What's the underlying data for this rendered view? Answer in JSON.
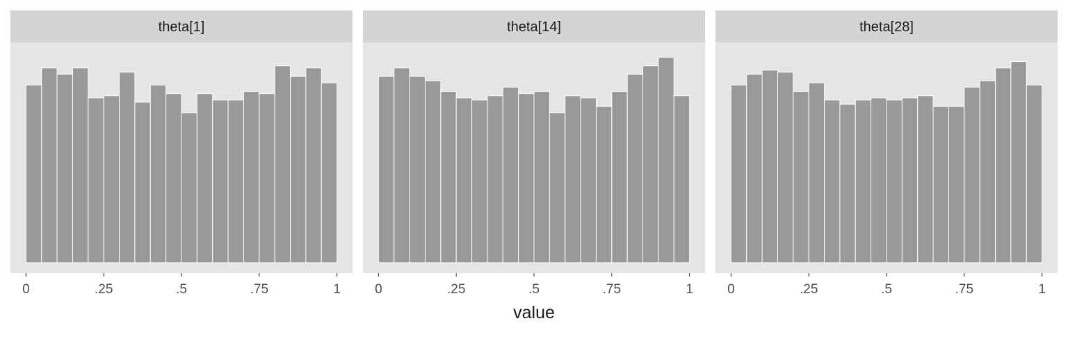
{
  "chart_data": [
    {
      "type": "bar",
      "title": "theta[1]",
      "xlabel": "value",
      "xlim": [
        0,
        1
      ],
      "ylim": [
        0,
        1.0
      ],
      "bins": 20,
      "bin_range": [
        0,
        1
      ],
      "values": [
        0.83,
        0.91,
        0.88,
        0.91,
        0.77,
        0.78,
        0.89,
        0.75,
        0.83,
        0.79,
        0.7,
        0.79,
        0.76,
        0.76,
        0.8,
        0.79,
        0.92,
        0.87,
        0.91,
        0.84
      ],
      "tick_labels": [
        "0",
        ".25",
        ".5",
        ".75",
        "1"
      ]
    },
    {
      "type": "bar",
      "title": "theta[14]",
      "xlabel": "value",
      "xlim": [
        0,
        1
      ],
      "ylim": [
        0,
        1.0
      ],
      "bins": 20,
      "bin_range": [
        0,
        1
      ],
      "values": [
        0.87,
        0.91,
        0.87,
        0.85,
        0.8,
        0.77,
        0.76,
        0.78,
        0.82,
        0.79,
        0.8,
        0.7,
        0.78,
        0.77,
        0.73,
        0.8,
        0.88,
        0.92,
        0.96,
        0.78
      ],
      "tick_labels": [
        "0",
        ".25",
        ".5",
        ".75",
        "1"
      ]
    },
    {
      "type": "bar",
      "title": "theta[28]",
      "xlabel": "value",
      "xlim": [
        0,
        1
      ],
      "ylim": [
        0,
        1.0
      ],
      "bins": 20,
      "bin_range": [
        0,
        1
      ],
      "values": [
        0.83,
        0.88,
        0.9,
        0.89,
        0.8,
        0.84,
        0.76,
        0.74,
        0.76,
        0.77,
        0.76,
        0.77,
        0.78,
        0.73,
        0.73,
        0.82,
        0.85,
        0.91,
        0.94,
        0.83
      ],
      "tick_labels": [
        "0",
        ".25",
        ".5",
        ".75",
        "1"
      ]
    }
  ],
  "axis_title": "value",
  "colors": {
    "panel_bg": "#e5e5e5",
    "strip_bg": "#d4d4d4",
    "bar_fill": "#999999",
    "bar_stroke": "#ffffff",
    "text": "#1a1a1a",
    "tick_text": "#4d4d4d",
    "tick_line": "#333333"
  }
}
